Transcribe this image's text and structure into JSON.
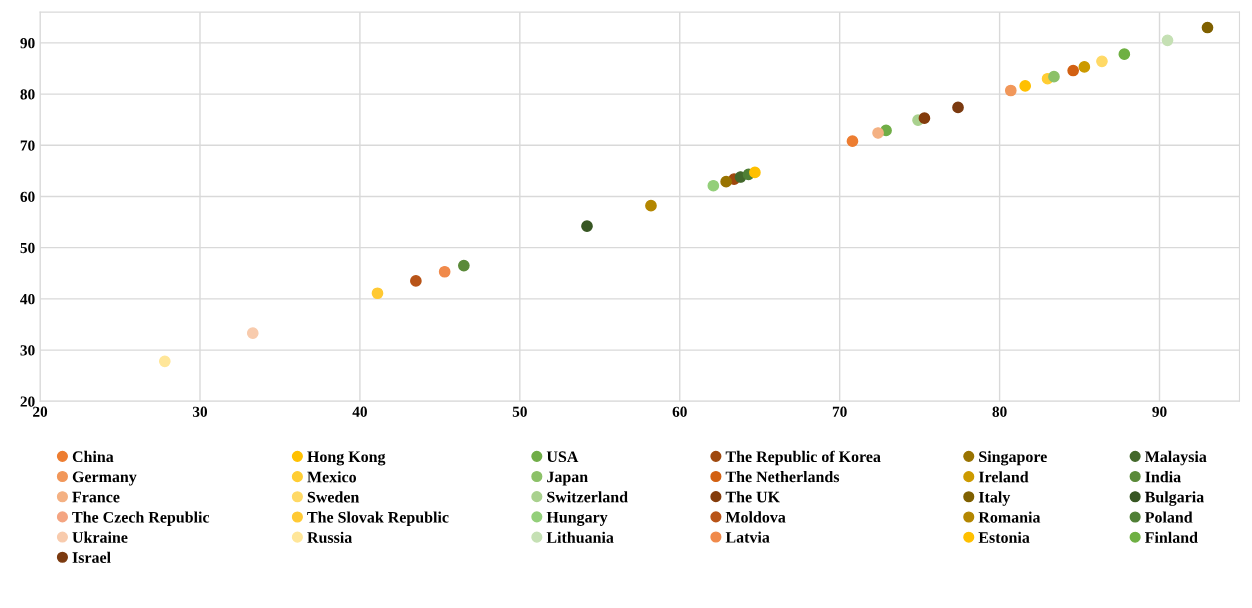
{
  "chart_data": {
    "type": "scatter",
    "xlim": [
      20,
      95
    ],
    "ylim": [
      20,
      96
    ],
    "xticks": [
      20,
      30,
      40,
      50,
      60,
      70,
      80,
      90
    ],
    "yticks": [
      20,
      30,
      40,
      50,
      60,
      70,
      80,
      90
    ],
    "grid": true,
    "legend": "bottom",
    "marker": "circle",
    "series": [
      {
        "name": "China",
        "color": "#ed7d31",
        "x": [
          70.8
        ],
        "values": [
          70.8
        ]
      },
      {
        "name": "Hong Kong",
        "color": "#ffc000",
        "x": [
          81.6
        ],
        "values": [
          81.6
        ]
      },
      {
        "name": "USA",
        "color": "#70ad47",
        "x": [
          72.9
        ],
        "values": [
          72.9
        ]
      },
      {
        "name": "The Republic of Korea",
        "color": "#9e480e",
        "x": [
          63.4
        ],
        "values": [
          63.4
        ]
      },
      {
        "name": "Singapore",
        "color": "#997300",
        "x": [
          62.9
        ],
        "values": [
          62.9
        ]
      },
      {
        "name": "Malaysia",
        "color": "#43682b",
        "x": [
          63.8
        ],
        "values": [
          63.8
        ]
      },
      {
        "name": "Germany",
        "color": "#f1975a",
        "x": [
          80.7
        ],
        "values": [
          80.7
        ]
      },
      {
        "name": "Mexico",
        "color": "#ffcd33",
        "x": [
          83.0
        ],
        "values": [
          83.0
        ]
      },
      {
        "name": "Japan",
        "color": "#8cc168",
        "x": [
          83.4
        ],
        "values": [
          83.4
        ]
      },
      {
        "name": "The Netherlands",
        "color": "#d26012",
        "x": [
          84.6
        ],
        "values": [
          84.6
        ]
      },
      {
        "name": "Ireland",
        "color": "#cc9a00",
        "x": [
          85.3
        ],
        "values": [
          85.3
        ]
      },
      {
        "name": "India",
        "color": "#5a8a39",
        "x": [
          46.5
        ],
        "values": [
          46.5
        ]
      },
      {
        "name": "France",
        "color": "#f4b183",
        "x": [
          72.4
        ],
        "values": [
          72.4
        ]
      },
      {
        "name": "Sweden",
        "color": "#ffd966",
        "x": [
          86.4
        ],
        "values": [
          86.4
        ]
      },
      {
        "name": "Switzerland",
        "color": "#a9d18e",
        "x": [
          74.9
        ],
        "values": [
          74.9
        ]
      },
      {
        "name": "The UK",
        "color": "#843c0c",
        "x": [
          75.3
        ],
        "values": [
          75.3
        ]
      },
      {
        "name": "Italy",
        "color": "#7f6000",
        "x": [
          93.0
        ],
        "values": [
          93.0
        ]
      },
      {
        "name": "Bulgaria",
        "color": "#375623",
        "x": [
          54.2
        ],
        "values": [
          54.2
        ]
      },
      {
        "name": "The Czech Republic",
        "color": "#f4a582",
        "x": [
          null
        ],
        "values": [
          null
        ]
      },
      {
        "name": "The Slovak Republic",
        "color": "#ffc933",
        "x": [
          41.1
        ],
        "values": [
          41.1
        ]
      },
      {
        "name": "Hungary",
        "color": "#93cf7a",
        "x": [
          62.1
        ],
        "values": [
          62.1
        ]
      },
      {
        "name": "Moldova",
        "color": "#b85418",
        "x": [
          43.5
        ],
        "values": [
          43.5
        ]
      },
      {
        "name": "Romania",
        "color": "#b38600",
        "x": [
          58.2
        ],
        "values": [
          58.2
        ]
      },
      {
        "name": "Poland",
        "color": "#4f7f35",
        "x": [
          64.3
        ],
        "values": [
          64.3
        ]
      },
      {
        "name": "Ukraine",
        "color": "#f8cbad",
        "x": [
          33.3
        ],
        "values": [
          33.3
        ]
      },
      {
        "name": "Russia",
        "color": "#ffe699",
        "x": [
          27.8
        ],
        "values": [
          27.8
        ]
      },
      {
        "name": "Lithuania",
        "color": "#c5e0b4",
        "x": [
          90.5
        ],
        "values": [
          90.5
        ]
      },
      {
        "name": "Latvia",
        "color": "#f08a4b",
        "x": [
          45.3
        ],
        "values": [
          45.3
        ]
      },
      {
        "name": "Estonia",
        "color": "#ffc000",
        "x": [
          64.7
        ],
        "values": [
          64.7
        ]
      },
      {
        "name": "Finland",
        "color": "#6fb043",
        "x": [
          87.8
        ],
        "values": [
          87.8
        ]
      },
      {
        "name": "Israel",
        "color": "#7b3a10",
        "x": [
          77.4
        ],
        "values": [
          77.4
        ]
      }
    ]
  }
}
